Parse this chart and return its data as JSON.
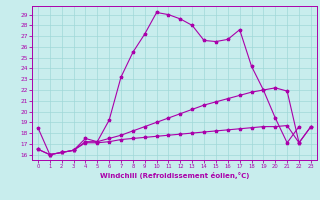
{
  "xlabel": "Windchill (Refroidissement éolien,°C)",
  "x_values": [
    0,
    1,
    2,
    3,
    4,
    5,
    6,
    7,
    8,
    9,
    10,
    11,
    12,
    13,
    14,
    15,
    16,
    17,
    18,
    19,
    20,
    21,
    22,
    23
  ],
  "line1": [
    18.5,
    16.0,
    16.2,
    16.4,
    17.5,
    17.2,
    19.2,
    23.2,
    25.5,
    27.2,
    29.2,
    29.0,
    28.6,
    28.0,
    26.6,
    26.5,
    26.7,
    27.6,
    24.2,
    22.0,
    19.4,
    17.1,
    18.6,
    null
  ],
  "line3": [
    16.5,
    16.0,
    16.2,
    16.4,
    17.2,
    17.2,
    17.5,
    17.8,
    18.2,
    18.6,
    19.0,
    19.4,
    19.8,
    20.2,
    20.6,
    20.9,
    21.2,
    21.5,
    21.8,
    22.0,
    22.2,
    21.9,
    17.1,
    18.6
  ],
  "line4": [
    16.5,
    16.0,
    16.2,
    16.4,
    17.1,
    17.1,
    17.2,
    17.4,
    17.5,
    17.6,
    17.7,
    17.8,
    17.9,
    18.0,
    18.1,
    18.2,
    18.3,
    18.4,
    18.5,
    18.6,
    18.6,
    18.7,
    17.1,
    18.6
  ],
  "color": "#aa00aa",
  "bg_color": "#c8eded",
  "grid_color": "#a0d8d8",
  "ylim": [
    15.5,
    29.8
  ],
  "xlim": [
    -0.5,
    23.5
  ],
  "yticks": [
    16,
    17,
    18,
    19,
    20,
    21,
    22,
    23,
    24,
    25,
    26,
    27,
    28,
    29
  ],
  "xticks": [
    0,
    1,
    2,
    3,
    4,
    5,
    6,
    7,
    8,
    9,
    10,
    11,
    12,
    13,
    14,
    15,
    16,
    17,
    18,
    19,
    20,
    21,
    22,
    23
  ]
}
